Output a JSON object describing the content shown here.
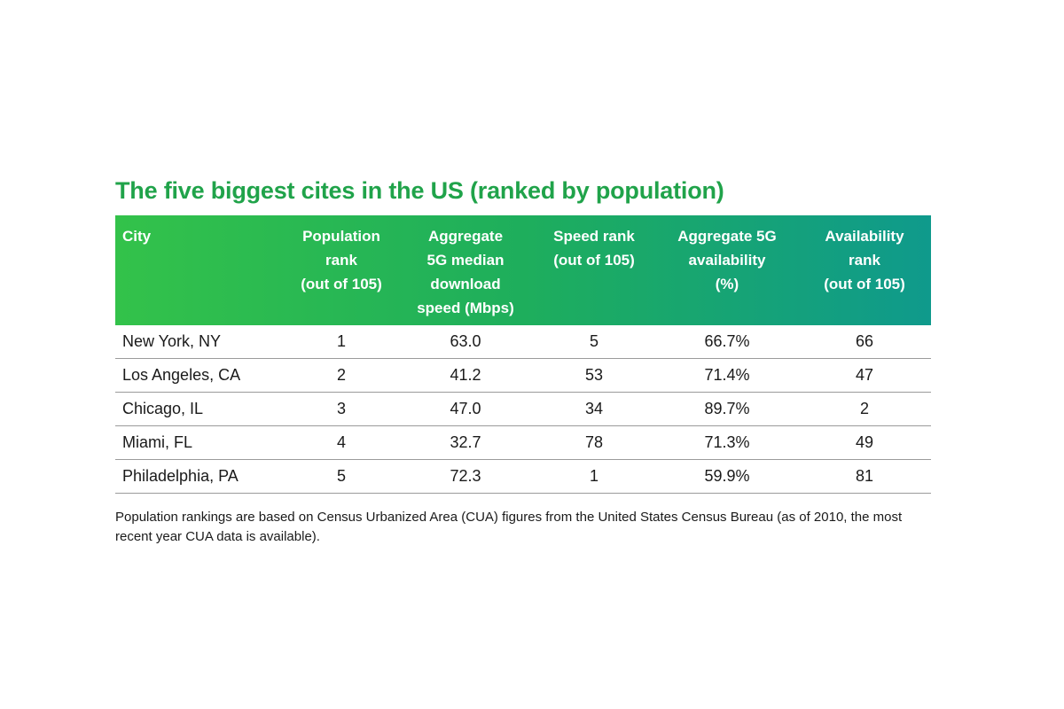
{
  "chart_data": {
    "type": "table",
    "title": "The five biggest cites in the US (ranked by population)",
    "columns": [
      [
        "City"
      ],
      [
        "Population",
        "rank",
        "(out of 105)"
      ],
      [
        "Aggregate",
        "5G median",
        "download",
        "speed (Mbps)"
      ],
      [
        "Speed rank",
        "(out of 105)"
      ],
      [
        "Aggregate 5G",
        "availability",
        "(%)"
      ],
      [
        "Availability",
        "rank",
        "(out of 105)"
      ]
    ],
    "rows": [
      [
        "New York, NY",
        "1",
        "63.0",
        "5",
        "66.7%",
        "66"
      ],
      [
        "Los Angeles, CA",
        "2",
        "41.2",
        "53",
        "71.4%",
        "47"
      ],
      [
        "Chicago, IL",
        "3",
        "47.0",
        "34",
        "89.7%",
        "2"
      ],
      [
        "Miami, FL",
        "4",
        "32.7",
        "78",
        "71.3%",
        "49"
      ],
      [
        "Philadelphia, PA",
        "5",
        "72.3",
        "1",
        "59.9%",
        "81"
      ]
    ],
    "footnote": "Population rankings are based on Census Urbanized Area (CUA) figures from the United States Census Bureau (as of 2010, the most recent year CUA data is available)."
  }
}
